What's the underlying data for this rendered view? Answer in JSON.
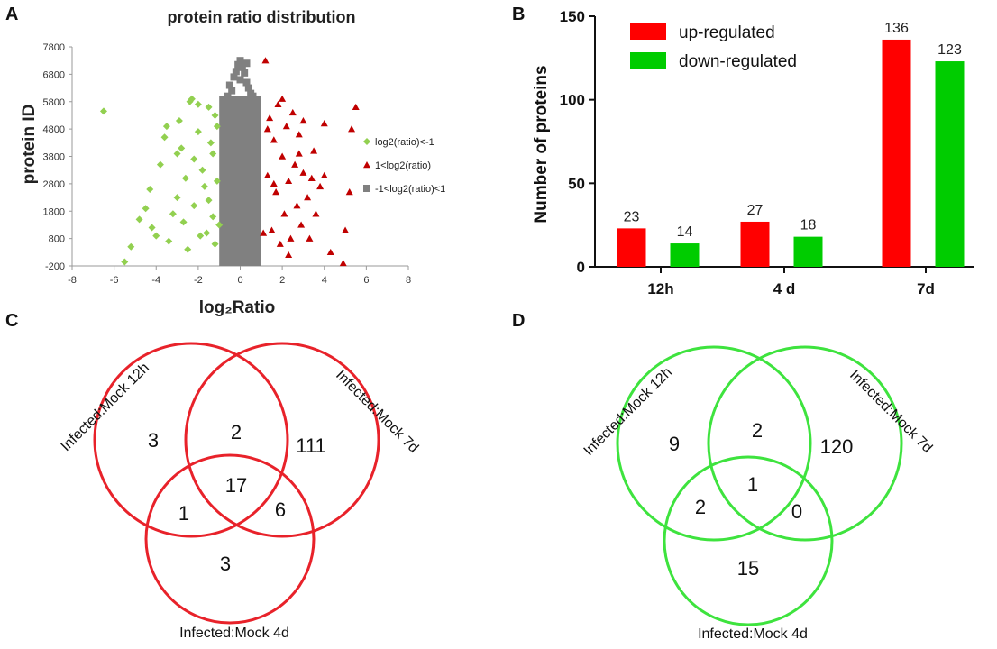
{
  "panels": {
    "A": {
      "letter": "A",
      "chart_data": {
        "type": "scatter",
        "title": "protein ratio distribution",
        "xlabel": "log₂Ratio",
        "ylabel": "protein ID",
        "xlim": [
          -8,
          8
        ],
        "ylim": [
          -200,
          7800
        ],
        "x_ticks": [
          "-8",
          "-6",
          "-4",
          "-2",
          "0",
          "2",
          "4",
          "6",
          "8"
        ],
        "y_ticks": [
          "-200",
          "800",
          "1800",
          "2800",
          "3800",
          "4800",
          "5800",
          "6800",
          "7800"
        ],
        "series": [
          {
            "name": "log2(ratio)<-1",
            "color": "#92d050",
            "marker": "diamond",
            "points": [
              [
                -6.5,
                5450
              ],
              [
                -5.5,
                -50
              ],
              [
                -5.2,
                500
              ],
              [
                -4.8,
                1500
              ],
              [
                -4.5,
                1900
              ],
              [
                -4.3,
                2600
              ],
              [
                -4.2,
                1200
              ],
              [
                -4.0,
                900
              ],
              [
                -3.8,
                3500
              ],
              [
                -3.6,
                4500
              ],
              [
                -3.5,
                4900
              ],
              [
                -3.4,
                700
              ],
              [
                -3.2,
                1700
              ],
              [
                -3.0,
                2300
              ],
              [
                -3.0,
                3900
              ],
              [
                -2.9,
                5100
              ],
              [
                -2.8,
                4100
              ],
              [
                -2.7,
                1400
              ],
              [
                -2.6,
                3000
              ],
              [
                -2.5,
                400
              ],
              [
                -2.4,
                5800
              ],
              [
                -2.3,
                5900
              ],
              [
                -2.2,
                2000
              ],
              [
                -2.2,
                3700
              ],
              [
                -2.0,
                5700
              ],
              [
                -2.0,
                4700
              ],
              [
                -1.9,
                900
              ],
              [
                -1.8,
                3300
              ],
              [
                -1.7,
                2700
              ],
              [
                -1.6,
                1000
              ],
              [
                -1.5,
                5600
              ],
              [
                -1.5,
                2200
              ],
              [
                -1.4,
                4300
              ],
              [
                -1.3,
                3900
              ],
              [
                -1.3,
                1600
              ],
              [
                -1.2,
                5300
              ],
              [
                -1.2,
                600
              ],
              [
                -1.1,
                2900
              ],
              [
                -1.1,
                4900
              ],
              [
                -1.0,
                1300
              ]
            ]
          },
          {
            "name": "1<log2(ratio)",
            "color": "#c00000",
            "marker": "triangle",
            "points": [
              [
                1.2,
                7300
              ],
              [
                1.3,
                3100
              ],
              [
                1.4,
                5200
              ],
              [
                1.5,
                1100
              ],
              [
                1.6,
                4400
              ],
              [
                1.7,
                2500
              ],
              [
                1.8,
                5700
              ],
              [
                1.9,
                600
              ],
              [
                2.0,
                3800
              ],
              [
                2.1,
                1700
              ],
              [
                2.2,
                4900
              ],
              [
                2.3,
                2900
              ],
              [
                2.4,
                800
              ],
              [
                2.5,
                5400
              ],
              [
                2.6,
                3500
              ],
              [
                2.7,
                2000
              ],
              [
                2.8,
                4600
              ],
              [
                2.9,
                1300
              ],
              [
                3.0,
                3200
              ],
              [
                3.0,
                5100
              ],
              [
                3.2,
                2300
              ],
              [
                3.3,
                800
              ],
              [
                3.5,
                4000
              ],
              [
                3.6,
                1700
              ],
              [
                3.8,
                2700
              ],
              [
                4.0,
                3100
              ],
              [
                4.0,
                5000
              ],
              [
                4.3,
                300
              ],
              [
                4.9,
                -100
              ],
              [
                5.0,
                1100
              ],
              [
                5.2,
                2500
              ],
              [
                5.3,
                4800
              ],
              [
                5.5,
                5600
              ],
              [
                1.1,
                1000
              ],
              [
                1.3,
                4800
              ],
              [
                1.6,
                2800
              ],
              [
                2.0,
                5900
              ],
              [
                2.3,
                200
              ],
              [
                2.8,
                3900
              ],
              [
                3.4,
                3000
              ]
            ]
          },
          {
            "name": "-1<log2(ratio)<1",
            "color": "#808080",
            "marker": "square",
            "points": [
              [
                -0.6,
                6000
              ],
              [
                -0.4,
                6200
              ],
              [
                -0.3,
                6700
              ],
              [
                -0.2,
                6900
              ],
              [
                -0.1,
                7150
              ],
              [
                0.0,
                7300
              ],
              [
                0.1,
                7050
              ],
              [
                0.2,
                6850
              ],
              [
                0.3,
                6500
              ],
              [
                0.4,
                6300
              ],
              [
                0.5,
                6100
              ],
              [
                0.6,
                6000
              ],
              [
                0.0,
                6600
              ],
              [
                -0.5,
                6400
              ],
              [
                0.3,
                7200
              ]
            ]
          }
        ],
        "dense_band": {
          "x_range": [
            -1,
            1
          ],
          "y_range": [
            -200,
            6000
          ],
          "color": "#808080"
        }
      }
    },
    "B": {
      "letter": "B",
      "chart_data": {
        "type": "bar",
        "categories": [
          "12h",
          "4 d",
          "7d"
        ],
        "series": [
          {
            "name": "up-regulated",
            "color": "#ff0000",
            "values": [
              23,
              27,
              136
            ]
          },
          {
            "name": "down-regulated",
            "color": "#00cc00",
            "values": [
              14,
              18,
              123
            ]
          }
        ],
        "ylabel": "Number of proteins",
        "xlabel": "",
        "ylim": [
          0,
          150
        ],
        "y_ticks": [
          "0",
          "50",
          "100",
          "150"
        ]
      }
    },
    "C": {
      "letter": "C",
      "color": "#e8222a",
      "sets": [
        "Infected:Mock 12h",
        "Infected:Mock 7d",
        "Infected:Mock 4d"
      ],
      "regions": {
        "only_12h": "3",
        "h12_7d": "2",
        "only_7d": "111",
        "h12_4d": "1",
        "all": "17",
        "d7_4d": "6",
        "only_4d": "3"
      }
    },
    "D": {
      "letter": "D",
      "color": "#3ee33e",
      "sets": [
        "Infected:Mock 12h",
        "Infected:Mock 7d",
        "Infected:Mock 4d"
      ],
      "regions": {
        "only_12h": "9",
        "h12_7d": "2",
        "only_7d": "120",
        "h12_4d": "2",
        "all": "1",
        "d7_4d": "0",
        "only_4d": "15"
      }
    }
  }
}
